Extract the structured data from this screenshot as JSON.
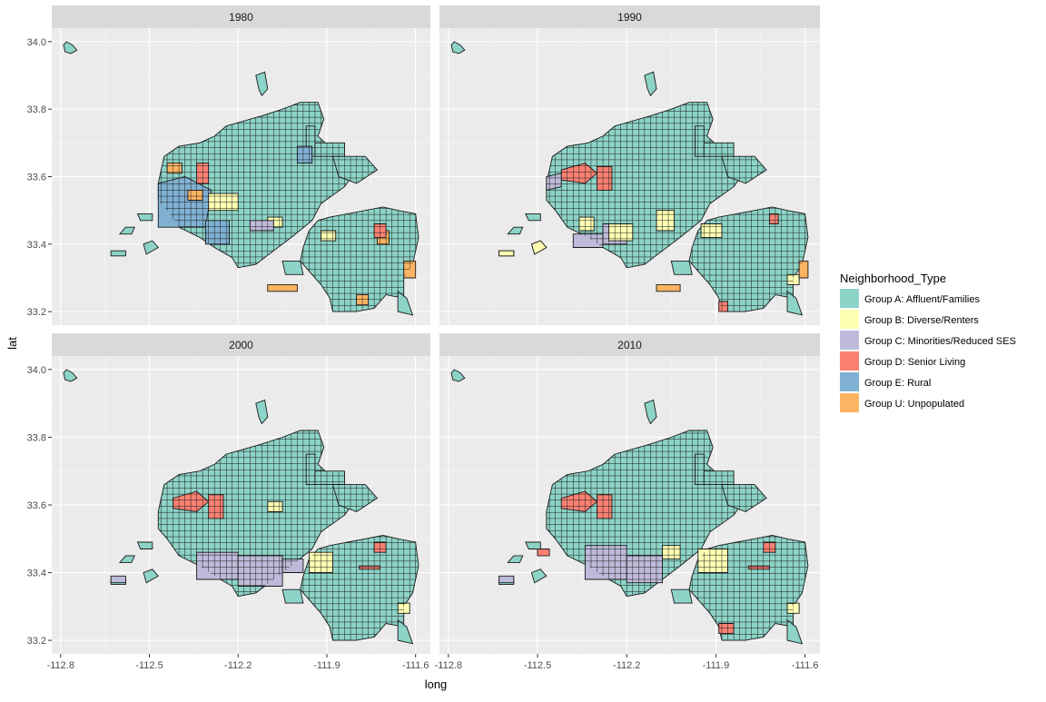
{
  "axes": {
    "xlabel": "long",
    "ylabel": "lat",
    "xticks": [
      -112.8,
      -112.5,
      -112.2,
      -111.9,
      -111.6
    ],
    "xtick_labels": [
      "-112.8",
      "-112.5",
      "-112.2",
      "-111.9",
      "-111.6"
    ],
    "yticks": [
      33.2,
      33.4,
      33.6,
      33.8,
      34.0
    ],
    "ytick_labels": [
      "33.2",
      "33.4",
      "33.6",
      "33.8",
      "34.0"
    ],
    "xlim": [
      -112.83,
      -111.55
    ],
    "ylim": [
      33.16,
      34.04
    ]
  },
  "facets": [
    "1980",
    "1990",
    "2000",
    "2010"
  ],
  "legend": {
    "title": "Neighborhood_Type",
    "items": [
      {
        "label": "Group A: Affluent/Families",
        "color": "#8DD3C7"
      },
      {
        "label": "Group B: Diverse/Renters",
        "color": "#FFFFB3"
      },
      {
        "label": "Group C: Minorities/Reduced SES",
        "color": "#BEBADA"
      },
      {
        "label": "Group D: Senior Living",
        "color": "#FB8072"
      },
      {
        "label": "Group E: Rural",
        "color": "#80B1D3"
      },
      {
        "label": "Group U: Unpopulated",
        "color": "#FDB462"
      }
    ]
  }
}
